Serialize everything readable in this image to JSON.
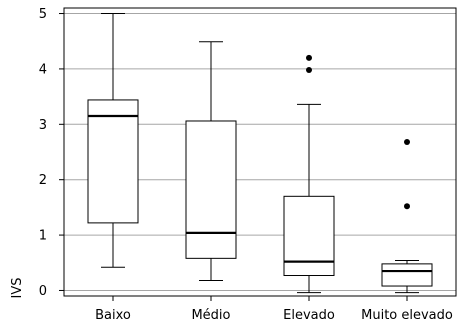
{
  "chart_data": {
    "type": "boxplot",
    "title": "",
    "xlabel": "",
    "ylabel": "IVS",
    "ylim": [
      -0.1,
      5.1
    ],
    "yticks": [
      0,
      1,
      2,
      3,
      4,
      5
    ],
    "grid": "horizontal",
    "categories": [
      "Baixo",
      "Médio",
      "Elevado",
      "Muito elevado"
    ],
    "boxes": [
      {
        "category": "Baixo",
        "whisker_low": 0.42,
        "q1": 1.22,
        "median": 3.15,
        "q3": 3.44,
        "whisker_high": 5.0,
        "outliers": []
      },
      {
        "category": "Médio",
        "whisker_low": 0.18,
        "q1": 0.58,
        "median": 1.04,
        "q3": 3.06,
        "whisker_high": 4.49,
        "outliers": []
      },
      {
        "category": "Elevado",
        "whisker_low": -0.04,
        "q1": 0.27,
        "median": 0.52,
        "q3": 1.7,
        "whisker_high": 3.36,
        "outliers": [
          3.98,
          4.2
        ]
      },
      {
        "category": "Muito elevado",
        "whisker_low": -0.04,
        "q1": 0.08,
        "median": 0.35,
        "q3": 0.48,
        "whisker_high": 0.54,
        "outliers": [
          1.52,
          2.68
        ]
      }
    ]
  }
}
